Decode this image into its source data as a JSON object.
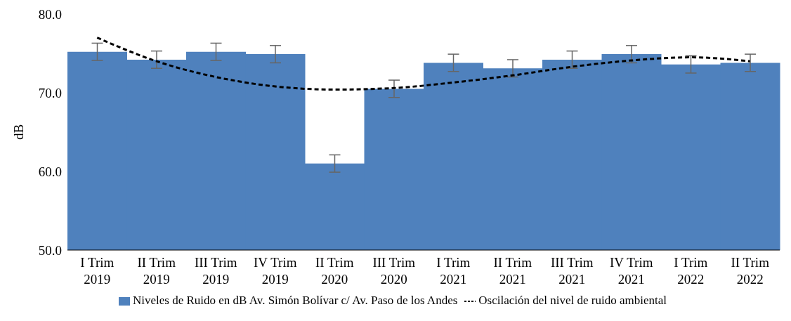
{
  "chart_data": {
    "type": "bar",
    "ylabel": "dB",
    "categories": [
      "I Trim 2019",
      "II Trim 2019",
      "III Trim 2019",
      "IV Trim 2019",
      "II Trim 2020",
      "III Trim 2020",
      "I Trim 2021",
      "II Trim 2021",
      "III Trim 2021",
      "IV Trim 2021",
      "I Trim 2022",
      "II Trim 2022"
    ],
    "series": [
      {
        "name": "Niveles de Ruido en dB Av. Simón Bolívar c/ Av. Paso de los Andes",
        "color": "#4f81bd",
        "values": [
          75.2,
          74.2,
          75.2,
          74.9,
          61.0,
          70.5,
          73.8,
          73.1,
          74.2,
          74.9,
          73.6,
          73.8
        ],
        "errors": [
          1.1,
          1.1,
          1.1,
          1.1,
          1.1,
          1.1,
          1.1,
          1.1,
          1.1,
          1.1,
          1.1,
          1.1
        ]
      },
      {
        "name": "Oscilación del nivel de ruido ambiental",
        "type": "line",
        "color": "#000000",
        "line_style": "dashed",
        "marker": "none",
        "values": [
          77.0,
          74.0,
          72.0,
          70.8,
          70.4,
          70.6,
          71.3,
          72.2,
          73.3,
          74.1,
          74.5,
          74.0
        ]
      }
    ],
    "ylim": [
      50,
      80
    ],
    "yticks": [
      {
        "value": 50,
        "label": "50.0"
      },
      {
        "value": 60,
        "label": "60.0"
      },
      {
        "value": 70,
        "label": "70.0"
      },
      {
        "value": 80,
        "label": "80.0"
      }
    ],
    "grid": false,
    "legend": "bottom"
  }
}
